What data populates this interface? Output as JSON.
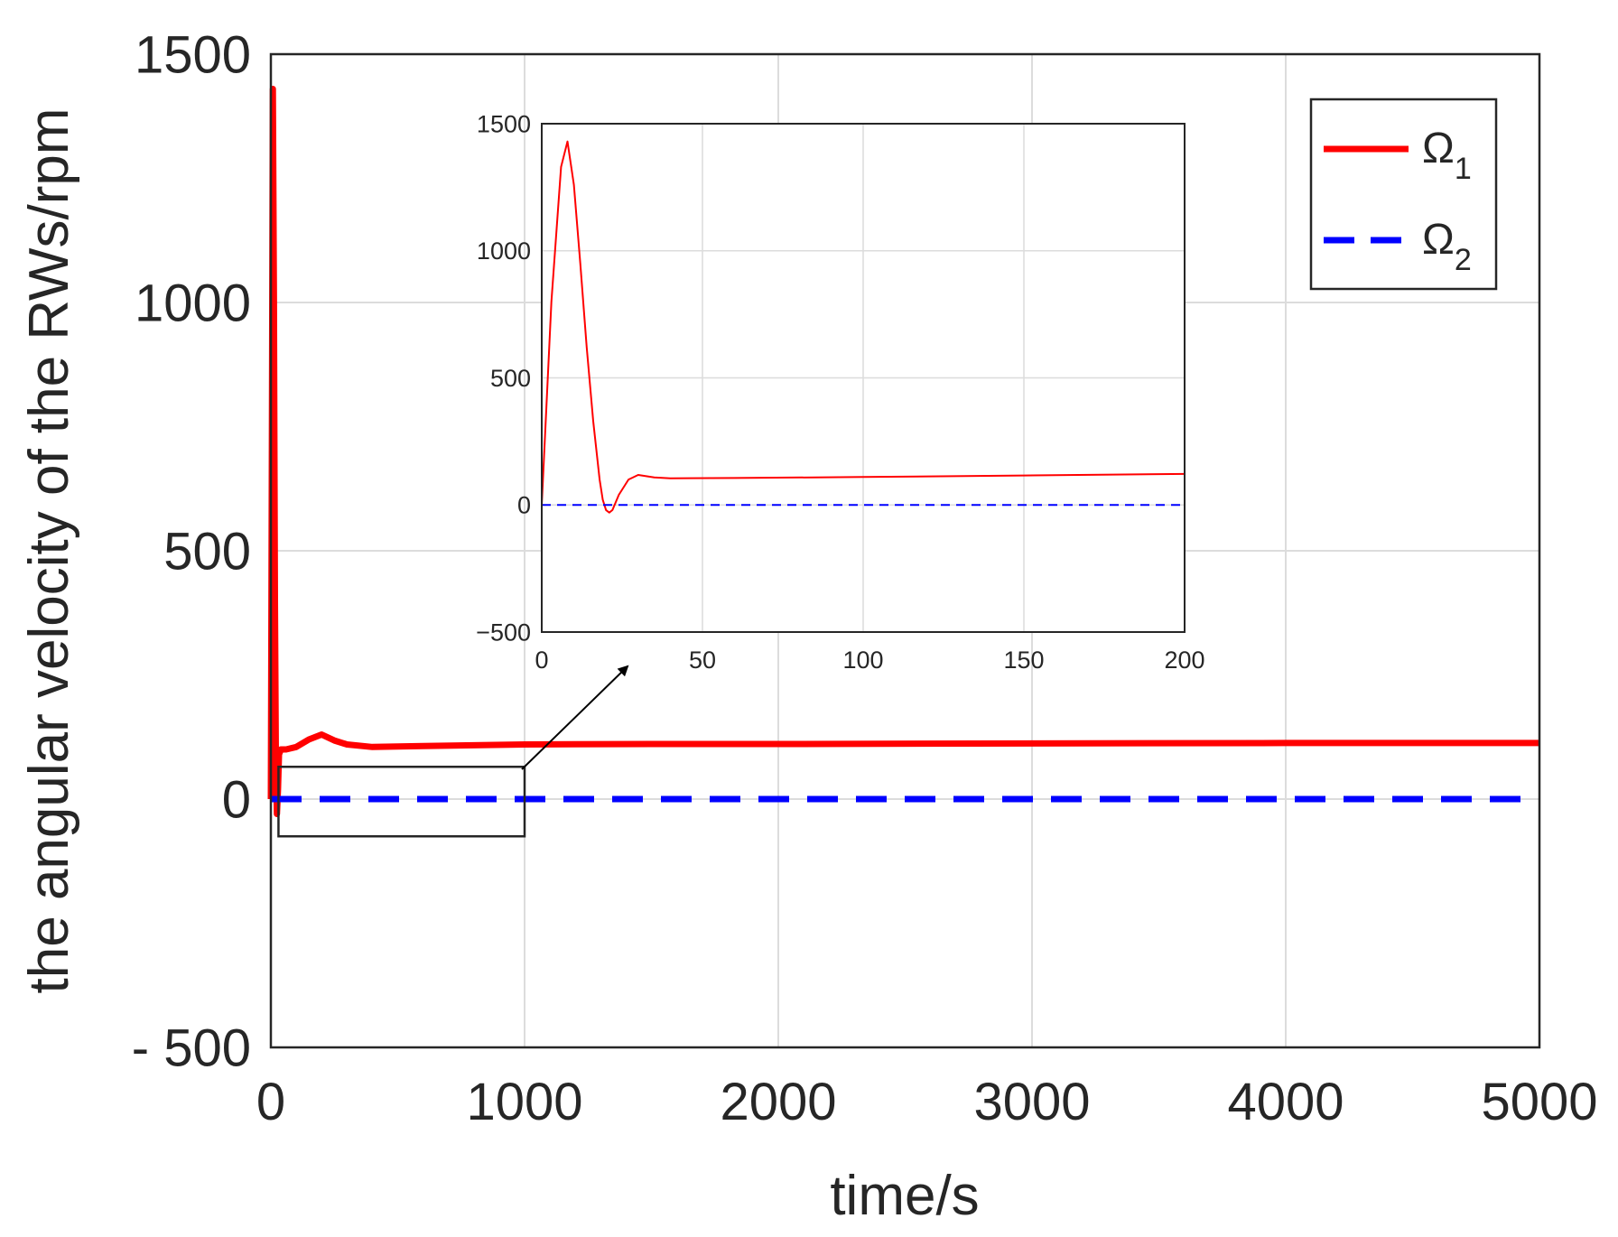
{
  "chart_data": [
    {
      "type": "line",
      "xlabel": "time/s",
      "ylabel": "the angular velocity of the RWs/rpm",
      "xlim": [
        0,
        5000
      ],
      "ylim": [
        -500,
        1500
      ],
      "xticks": [
        0,
        1000,
        2000,
        3000,
        4000,
        5000
      ],
      "xtick_labels": [
        "0",
        "1000",
        "2000",
        "3000",
        "4000",
        "5000"
      ],
      "yticks": [
        -500,
        0,
        500,
        1000,
        1500
      ],
      "ytick_labels": [
        "- 500",
        "0",
        "500",
        "1000",
        "1500"
      ],
      "grid": true,
      "legend": "top-right",
      "series": [
        {
          "name": "Ω",
          "name_sub": "1",
          "color": "#ff0000",
          "style": "solid",
          "x": [
            0,
            4,
            8,
            12,
            16,
            20,
            24,
            28,
            32,
            40,
            60,
            100,
            150,
            200,
            250,
            300,
            400,
            600,
            1000,
            1500,
            2000,
            3000,
            4000,
            5000
          ],
          "y": [
            0,
            700,
            1430,
            1000,
            400,
            60,
            -30,
            20,
            90,
            100,
            100,
            105,
            120,
            130,
            118,
            110,
            105,
            107,
            110,
            111,
            111,
            112,
            113,
            113
          ]
        },
        {
          "name": "Ω",
          "name_sub": "2",
          "color": "#0000ff",
          "style": "dashed",
          "x": [
            0,
            5000
          ],
          "y": [
            0,
            0
          ]
        }
      ],
      "zoom_box": {
        "x0": 30,
        "x1": 1000,
        "y0": -75,
        "y1": 65
      }
    },
    {
      "type": "line",
      "role": "inset",
      "xlim": [
        0,
        200
      ],
      "ylim": [
        -500,
        1500
      ],
      "xticks": [
        0,
        50,
        100,
        150,
        200
      ],
      "xtick_labels": [
        "0",
        "50",
        "100",
        "150",
        "200"
      ],
      "yticks": [
        -500,
        0,
        500,
        1000,
        1500
      ],
      "ytick_labels": [
        "−500",
        "0",
        "500",
        "1000",
        "1500"
      ],
      "grid": true,
      "series": [
        {
          "name": "Ω",
          "name_sub": "1",
          "color": "#ff0000",
          "style": "solid",
          "x": [
            0,
            3,
            6,
            8,
            10,
            12,
            14,
            16,
            18,
            19,
            20,
            21,
            22,
            24,
            27,
            30,
            35,
            40,
            60,
            100,
            150,
            200
          ],
          "y": [
            0,
            800,
            1330,
            1430,
            1260,
            950,
            620,
            330,
            100,
            20,
            -20,
            -30,
            -20,
            40,
            100,
            118,
            108,
            105,
            106,
            110,
            116,
            122
          ]
        },
        {
          "name": "Ω",
          "name_sub": "2",
          "color": "#0000ff",
          "style": "dashed",
          "x": [
            0,
            200
          ],
          "y": [
            0,
            0
          ]
        }
      ]
    }
  ]
}
